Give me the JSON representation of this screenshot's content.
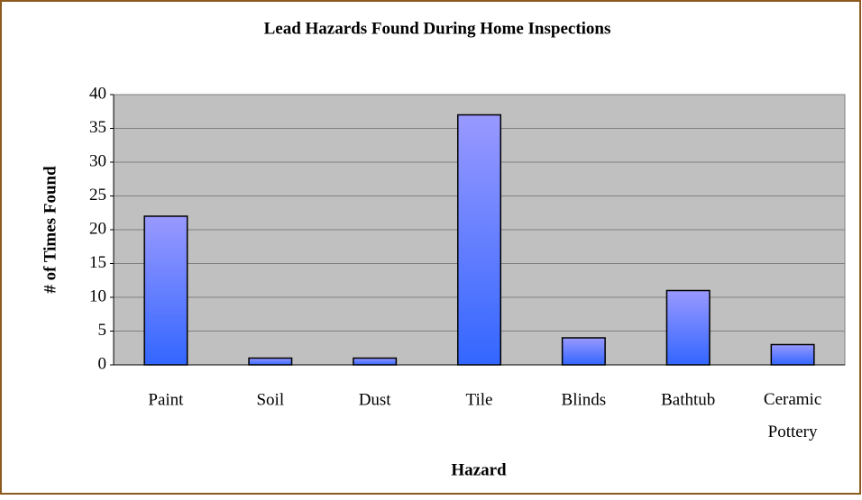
{
  "chart_data": {
    "type": "bar",
    "title": "Lead Hazards Found During Home Inspections",
    "x_label": "Hazard",
    "y_label": "# of Times Found",
    "categories": [
      "Paint",
      "Soil",
      "Dust",
      "Tile",
      "Blinds",
      "Bathtub",
      "Ceramic Pottery"
    ],
    "values": [
      22,
      1,
      1,
      37,
      4,
      11,
      3
    ],
    "color": [
      "#9999ff",
      "#3366ff"
    ],
    "ylim": [
      0,
      40
    ],
    "yticks": [
      0,
      5,
      10,
      15,
      20,
      25,
      30,
      35,
      40
    ],
    "grid": true
  }
}
